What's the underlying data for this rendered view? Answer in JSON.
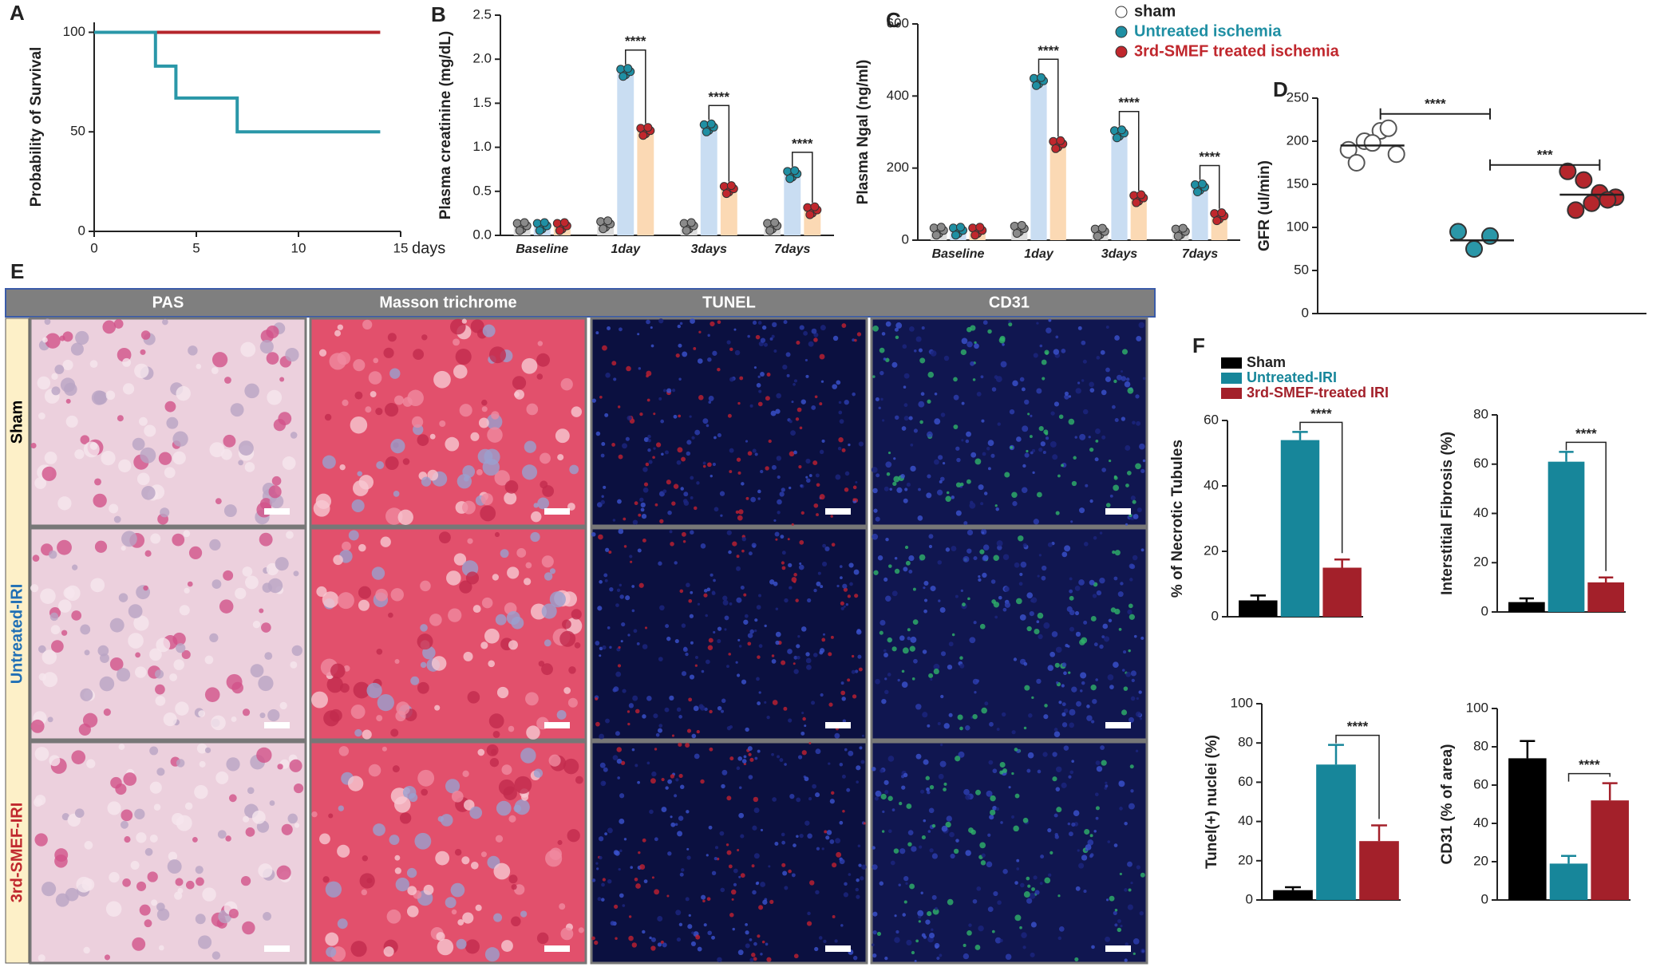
{
  "chart_data": [
    {
      "panel": "A",
      "type": "line",
      "ylabel": "Probability of Survival",
      "xlabel": "days",
      "xlim": [
        0,
        15
      ],
      "ylim": [
        0,
        105
      ],
      "xticks": [
        0,
        5,
        10,
        15
      ],
      "yticks": [
        0,
        50,
        100
      ],
      "series": [
        {
          "color": "#b5262c",
          "x": [
            0,
            14
          ],
          "values": [
            100,
            100
          ]
        },
        {
          "color": "#2a97a8",
          "x": [
            0,
            3,
            3,
            4,
            4,
            7,
            7,
            14
          ],
          "values": [
            100,
            100,
            83,
            83,
            67,
            67,
            50,
            50
          ]
        }
      ]
    },
    {
      "panel": "B",
      "type": "bar",
      "ylabel": "Plasma creatinine (mg/dL)",
      "categories": [
        "Baseline",
        "1day",
        "3days",
        "7days"
      ],
      "ylim": [
        0,
        2.5
      ],
      "yticks": [
        {
          "value": 0,
          "label": "0.0"
        },
        {
          "value": 0.5,
          "label": "0.5"
        },
        {
          "value": 1,
          "label": "1.0"
        },
        {
          "value": 1.5,
          "label": "1.5"
        },
        {
          "value": 2,
          "label": "2.0"
        },
        {
          "value": 2.5,
          "label": "2.5"
        }
      ],
      "significance": [
        null,
        "****",
        "****",
        "****"
      ],
      "series": [
        {
          "color": "#dcdcdc",
          "dot_color": "#8a8a8a",
          "values": [
            0.1,
            0.12,
            0.1,
            0.1
          ]
        },
        {
          "color": "#c9ddf2",
          "dot_color": "#1f8fa3",
          "values": [
            0.1,
            1.85,
            1.22,
            0.69
          ]
        },
        {
          "color": "#fbd9b4",
          "dot_color": "#c0272d",
          "values": [
            0.1,
            1.18,
            0.52,
            0.28
          ]
        }
      ]
    },
    {
      "panel": "C",
      "type": "bar",
      "ylabel": "Plasma Ngal (ng/ml)",
      "categories": [
        "Baseline",
        "1day",
        "3days",
        "7days"
      ],
      "ylim": [
        0,
        600
      ],
      "yticks": [
        0,
        200,
        400,
        600
      ],
      "significance": [
        null,
        "****",
        "****",
        "****"
      ],
      "legend": "top-right",
      "series": [
        {
          "name": "sham",
          "color": "#dcdcdc",
          "dot_color": "#8a8a8a",
          "values": [
            25,
            30,
            22,
            22
          ]
        },
        {
          "name": "Untreated ischemia",
          "color": "#c9ddf2",
          "dot_color": "#1f8fa3",
          "values": [
            25,
            440,
            295,
            145
          ]
        },
        {
          "name": "3rd-SMEF treated ischemia",
          "color": "#fbd9b4",
          "dot_color": "#c0272d",
          "values": [
            25,
            265,
            115,
            65
          ]
        }
      ]
    },
    {
      "panel": "D",
      "type": "strip",
      "ylabel": "GFR (ul/min)",
      "ylim": [
        0,
        250
      ],
      "yticks": [
        0,
        50,
        100,
        150,
        200,
        250
      ],
      "colors": [
        "#ffffff",
        "#2a97a8",
        "#b5262c"
      ],
      "groups": [
        [
          190,
          200,
          212,
          185,
          175,
          198,
          215
        ],
        [
          95,
          75,
          90
        ],
        [
          165,
          155,
          140,
          135,
          120,
          128,
          132
        ]
      ],
      "values": [
        195,
        85,
        138
      ],
      "comparisons": [
        "****",
        "***"
      ]
    },
    {
      "panel": "F",
      "type": "bar",
      "ylabel": "% of Necrotic Tubules",
      "legend": "top-left",
      "categories": [
        "Sham",
        "Untreated-IRI",
        "3rd-SMEF-treated IRI"
      ],
      "colors": [
        "#000000",
        "#17869a",
        "#a3202a"
      ],
      "values": [
        5,
        54,
        15
      ],
      "errors": [
        1.5,
        2.5,
        2.5
      ],
      "ylim": [
        0,
        60
      ],
      "yticks": [
        0,
        20,
        40,
        60
      ],
      "significance": "****"
    },
    {
      "type": "bar",
      "ylabel": "Interstitial Fibrosis (%)",
      "colors": [
        "#000000",
        "#17869a",
        "#a3202a"
      ],
      "values": [
        4,
        61,
        12
      ],
      "errors": [
        1.5,
        4,
        2
      ],
      "ylim": [
        0,
        80
      ],
      "yticks": [
        0,
        20,
        40,
        60,
        80
      ],
      "significance": "****"
    },
    {
      "type": "bar",
      "ylabel": "Tunel(+) nuclei (%)",
      "colors": [
        "#000000",
        "#17869a",
        "#a3202a"
      ],
      "values": [
        5,
        69,
        30
      ],
      "errors": [
        1.5,
        10,
        8
      ],
      "ylim": [
        0,
        100
      ],
      "yticks": [
        0,
        20,
        40,
        60,
        80,
        100
      ],
      "significance": "****"
    },
    {
      "type": "bar",
      "ylabel": "CD31 (% of area)",
      "colors": [
        "#000000",
        "#17869a",
        "#a3202a"
      ],
      "values": [
        74,
        19,
        52
      ],
      "errors": [
        9,
        4,
        9
      ],
      "ylim": [
        0,
        100
      ],
      "yticks": [
        0,
        20,
        40,
        60,
        80,
        100
      ],
      "significance": "****"
    }
  ],
  "histology": {
    "panel": "E",
    "columns": [
      "PAS",
      "Masson trichrome",
      "TUNEL",
      "CD31"
    ],
    "rows": [
      "Sham",
      "Untreated-IRI",
      "3rd-SMEF-IRI"
    ],
    "row_colors": [
      "#000000",
      "#1f6fb5",
      "#c0272d"
    ]
  }
}
